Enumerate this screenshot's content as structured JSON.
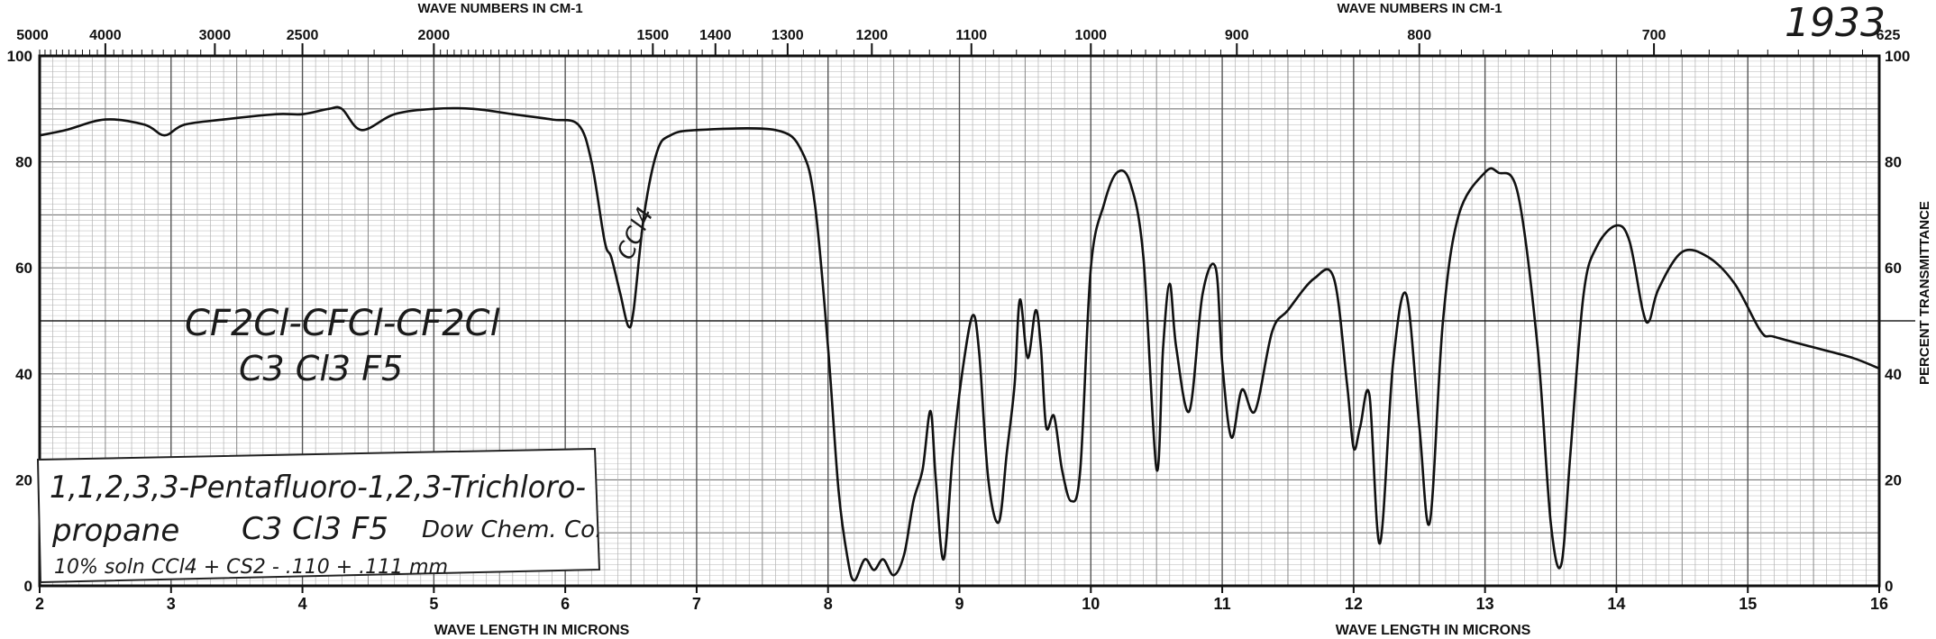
{
  "sheet_number": "1933",
  "annotations": {
    "formula_structural": "CF2Cl-CFCl-CF2Cl",
    "formula_molecular": "C3 Cl3 F5",
    "solvent_mark": "CCl4"
  },
  "label_box": {
    "line1": "1,1,2,3,3-Pentafluoro-1,2,3-Trichloro-",
    "line2_name": "propane",
    "line2_formula": "C3 Cl3 F5",
    "line2_source": "Dow Chem. Co.",
    "line3": "10% soln CCl4 + CS2 - .110 + .111 mm"
  },
  "chart_data": {
    "type": "line",
    "title": "",
    "xlabel": "WAVE LENGTH IN MICRONS",
    "x2label": "WAVE NUMBERS IN CM-1",
    "ylabel": "PERCENT TRANSMITTANCE",
    "xlim": [
      2,
      16
    ],
    "ylim": [
      0,
      100
    ],
    "grid": true,
    "x_ticks": [
      2,
      3,
      4,
      5,
      6,
      7,
      8,
      9,
      10,
      11,
      12,
      13,
      14,
      15,
      16
    ],
    "x_tick_labels": [
      "2",
      "3",
      "4",
      "5",
      "6",
      "7",
      "8",
      "9",
      "10",
      "11",
      "12",
      "13",
      "14",
      "15",
      "16"
    ],
    "y_ticks": [
      0,
      20,
      40,
      60,
      80,
      100
    ],
    "y_tick_labels_left": [
      "0",
      "20",
      "40",
      "60",
      "80",
      "100"
    ],
    "y_tick_labels_right": [
      "0",
      "20",
      "40",
      "60",
      "80",
      "100"
    ],
    "wavenumber_ticks": [
      4000,
      3000,
      2500,
      2000,
      1500,
      1400,
      1300,
      1200,
      1100,
      1000,
      900,
      800,
      700
    ],
    "wavenumber_tick_labels": [
      "4000",
      "3000",
      "2500",
      "2000",
      "1500",
      "1400",
      "1300",
      "1200",
      "1100",
      "1000",
      "900",
      "800",
      "700"
    ],
    "wavenumber_edge_labels": [
      "5000",
      "625"
    ],
    "series": [
      {
        "x": [
          2.0,
          2.2,
          2.5,
          2.8,
          2.95,
          3.1,
          3.4,
          3.8,
          4.0,
          4.2,
          4.3,
          4.45,
          4.7,
          5.0,
          5.3,
          5.6,
          5.9,
          6.1,
          6.2,
          6.3,
          6.35,
          6.42,
          6.48,
          6.52,
          6.6,
          6.7,
          6.8,
          7.0,
          7.6,
          7.8,
          7.9,
          8.0,
          8.08,
          8.15,
          8.2,
          8.28,
          8.35,
          8.42,
          8.5,
          8.58,
          8.65,
          8.72,
          8.78,
          8.82,
          8.88,
          8.95,
          9.02,
          9.1,
          9.15,
          9.22,
          9.3,
          9.36,
          9.42,
          9.46,
          9.52,
          9.58,
          9.62,
          9.66,
          9.72,
          9.78,
          9.85,
          9.92,
          10.0,
          10.1,
          10.2,
          10.3,
          10.4,
          10.5,
          10.55,
          10.6,
          10.65,
          10.75,
          10.85,
          10.95,
          11.0,
          11.07,
          11.15,
          11.25,
          11.38,
          11.5,
          11.7,
          11.85,
          11.95,
          12.0,
          12.05,
          12.12,
          12.2,
          12.3,
          12.4,
          12.5,
          12.58,
          12.68,
          12.8,
          13.0,
          13.1,
          13.25,
          13.4,
          13.5,
          13.58,
          13.65,
          13.75,
          13.85,
          14.0,
          14.1,
          14.2,
          14.25,
          14.32,
          14.5,
          14.7,
          14.9,
          15.1,
          15.2,
          15.5,
          15.8,
          16.0
        ],
        "y": [
          85,
          86,
          88,
          87,
          85,
          87,
          88,
          89,
          89,
          90,
          90,
          86,
          89,
          90,
          90,
          89,
          88,
          87,
          80,
          65,
          62,
          55,
          49,
          52,
          70,
          82,
          85,
          86,
          86,
          82,
          72,
          45,
          18,
          5,
          1,
          5,
          3,
          5,
          2,
          6,
          16,
          22,
          33,
          20,
          5,
          25,
          40,
          51,
          44,
          20,
          12,
          25,
          38,
          54,
          43,
          52,
          45,
          30,
          32,
          22,
          16,
          22,
          60,
          72,
          78,
          76,
          62,
          22,
          45,
          57,
          45,
          33,
          55,
          60,
          42,
          28,
          37,
          33,
          48,
          52,
          58,
          58,
          38,
          26,
          30,
          36,
          8,
          42,
          55,
          30,
          12,
          50,
          70,
          78,
          78,
          74,
          45,
          12,
          4,
          25,
          55,
          64,
          68,
          65,
          52,
          50,
          56,
          63,
          62,
          57,
          48,
          47,
          45,
          43,
          41
        ]
      }
    ]
  }
}
